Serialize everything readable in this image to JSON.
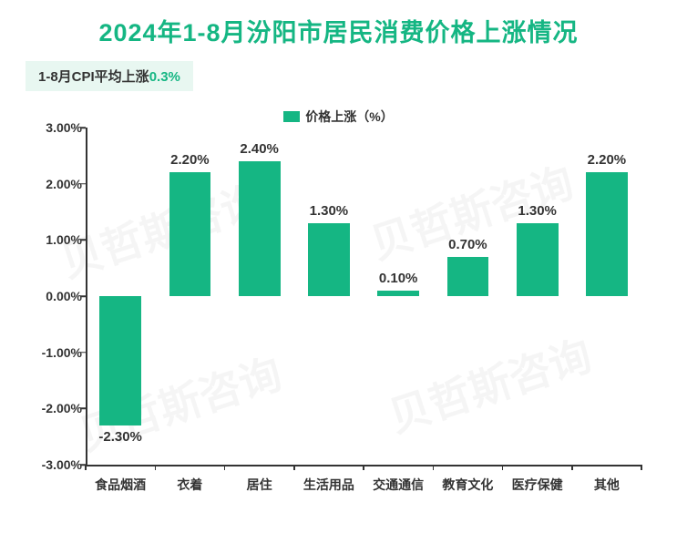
{
  "title": {
    "text": "2024年1-8月汾阳市居民消费价格上涨情况",
    "color": "#15b683",
    "fontsize": 27
  },
  "subtitle": {
    "prefix": "1-8月CPI平均上涨",
    "highlight": "0.3%",
    "prefix_color": "#333333",
    "highlight_color": "#15b683",
    "background": "#e8f7f1",
    "fontsize": 15
  },
  "legend": {
    "label": "价格上涨（%）",
    "swatch_color": "#15b683",
    "fontsize": 14,
    "text_color": "#333333"
  },
  "chart": {
    "type": "bar",
    "categories": [
      "食品烟酒",
      "衣着",
      "居住",
      "生活用品",
      "交通通信",
      "教育文化",
      "医疗保健",
      "其他"
    ],
    "values": [
      -2.3,
      2.2,
      2.4,
      1.3,
      0.1,
      0.7,
      1.3,
      2.2
    ],
    "value_labels": [
      "-2.30%",
      "2.20%",
      "2.40%",
      "1.30%",
      "0.10%",
      "0.70%",
      "1.30%",
      "2.20%"
    ],
    "bar_color": "#15b683",
    "ylim": [
      -3.0,
      3.0
    ],
    "yticks": [
      -3.0,
      -2.0,
      -1.0,
      0.0,
      1.0,
      2.0,
      3.0
    ],
    "ytick_labels": [
      "-3.00%",
      "-2.00%",
      "-1.00%",
      "0.00%",
      "1.00%",
      "2.00%",
      "3.00%"
    ],
    "bar_width_ratio": 0.6,
    "axis_color": "#333333",
    "tick_fontsize": 14,
    "tick_color": "#333333",
    "value_label_fontsize": 15,
    "value_label_color": "#333333",
    "category_fontsize": 14,
    "category_color": "#333333"
  },
  "watermark": {
    "text": "贝哲斯咨询",
    "color": "rgba(0,0,0,0.04)"
  }
}
